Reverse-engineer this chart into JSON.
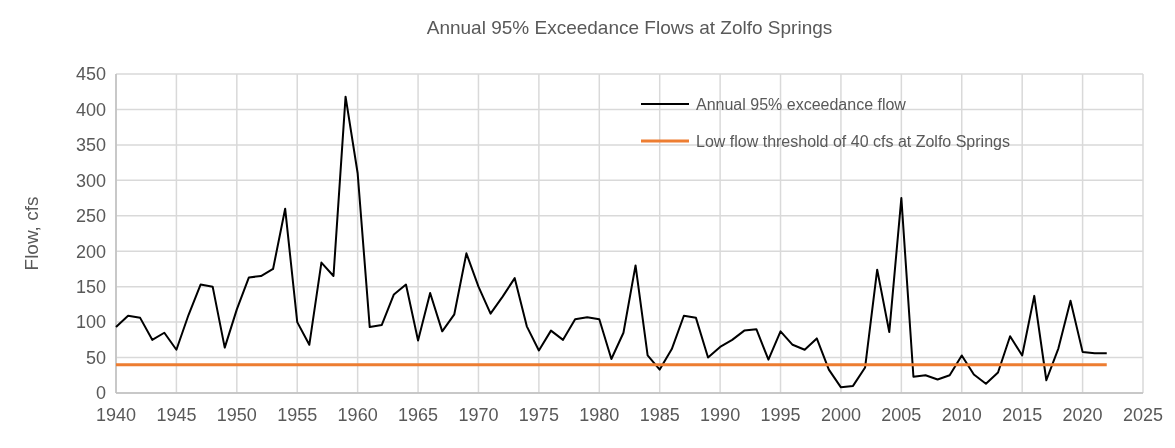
{
  "chart_data": {
    "type": "line",
    "title": "Annual 95% Exceedance Flows at Zolfo Springs",
    "ylabel": "Flow, cfs",
    "xlim": [
      1940,
      2025
    ],
    "xticks": [
      1940,
      1945,
      1950,
      1955,
      1960,
      1965,
      1970,
      1975,
      1980,
      1985,
      1990,
      1995,
      2000,
      2005,
      2010,
      2015,
      2020,
      2025
    ],
    "ylim": [
      0,
      450
    ],
    "yticks": [
      0,
      50,
      100,
      150,
      200,
      250,
      300,
      350,
      400,
      450
    ],
    "grid": true,
    "legend": "top right",
    "marker": "none",
    "series": [
      {
        "name": "Annual 95% exceedance flow",
        "color": "#000000",
        "x": [
          1940,
          1941,
          1942,
          1943,
          1944,
          1945,
          1946,
          1947,
          1948,
          1949,
          1950,
          1951,
          1952,
          1953,
          1954,
          1955,
          1956,
          1957,
          1958,
          1959,
          1960,
          1961,
          1962,
          1963,
          1964,
          1965,
          1966,
          1967,
          1968,
          1969,
          1970,
          1971,
          1972,
          1973,
          1974,
          1975,
          1976,
          1977,
          1978,
          1979,
          1980,
          1981,
          1982,
          1983,
          1984,
          1985,
          1986,
          1987,
          1988,
          1989,
          1990,
          1991,
          1992,
          1993,
          1994,
          1995,
          1996,
          1997,
          1998,
          1999,
          2000,
          2001,
          2002,
          2003,
          2004,
          2005,
          2006,
          2007,
          2008,
          2009,
          2010,
          2011,
          2012,
          2013,
          2014,
          2015,
          2016,
          2017,
          2018,
          2019,
          2020,
          2021,
          2022
        ],
        "values": [
          93,
          109,
          106,
          75,
          85,
          61,
          110,
          153,
          150,
          64,
          118,
          163,
          165,
          175,
          260,
          100,
          68,
          184,
          165,
          418,
          310,
          93,
          96,
          139,
          153,
          74,
          141,
          87,
          111,
          197,
          150,
          112,
          136,
          162,
          94,
          60,
          88,
          75,
          104,
          107,
          104,
          48,
          85,
          180,
          53,
          33,
          62,
          109,
          106,
          50,
          65,
          75,
          88,
          90,
          47,
          87,
          68,
          61,
          77,
          33,
          8,
          10,
          36,
          174,
          86,
          275,
          23,
          25,
          19,
          25,
          53,
          26,
          13,
          29,
          80,
          53,
          137,
          18,
          63,
          130,
          58,
          56,
          56
        ]
      },
      {
        "name": "Low flow threshold of 40 cfs at Zolfo Springs",
        "color": "#ed7d31",
        "x": [
          1940,
          2022
        ],
        "values": [
          40,
          40
        ]
      }
    ]
  }
}
